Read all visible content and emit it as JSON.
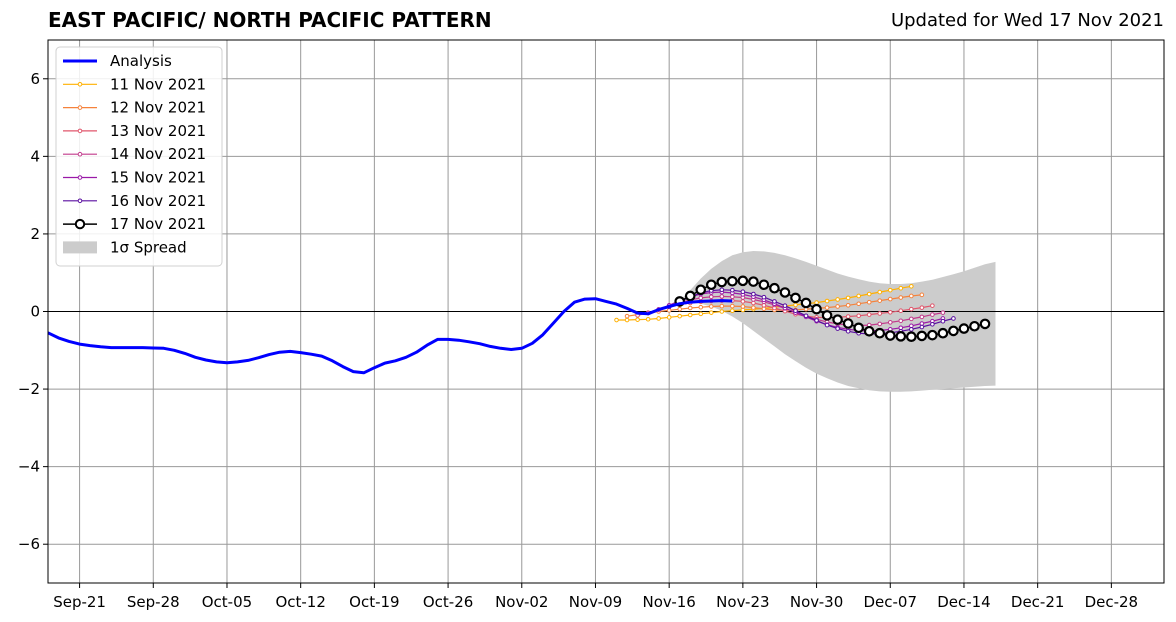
{
  "chart_data": {
    "type": "line",
    "title": "EAST PACIFIC/ NORTH PACIFIC PATTERN",
    "subtitle": "Updated for Wed 17 Nov 2021",
    "x_range": [
      "2021-09-18",
      "2022-01-02"
    ],
    "ylim": [
      -7,
      7
    ],
    "yticks": [
      -6,
      -4,
      -2,
      0,
      2,
      4,
      6
    ],
    "ytick_labels": [
      "−6",
      "−4",
      "−2",
      "0",
      "2",
      "4",
      "6"
    ],
    "xticks": [
      "2021-09-21",
      "2021-09-28",
      "2021-10-05",
      "2021-10-12",
      "2021-10-19",
      "2021-10-26",
      "2021-11-02",
      "2021-11-09",
      "2021-11-16",
      "2021-11-23",
      "2021-11-30",
      "2021-12-07",
      "2021-12-14",
      "2021-12-21",
      "2021-12-28"
    ],
    "xtick_labels": [
      "Sep-21",
      "Sep-28",
      "Oct-05",
      "Oct-12",
      "Oct-19",
      "Oct-26",
      "Nov-02",
      "Nov-09",
      "Nov-16",
      "Nov-23",
      "Nov-30",
      "Dec-07",
      "Dec-14",
      "Dec-21",
      "Dec-28"
    ],
    "grid": true,
    "legend_position": "upper-left",
    "legend": [
      {
        "label": "Analysis",
        "color": "#0000ff",
        "style": "thick-line"
      },
      {
        "label": "11 Nov 2021",
        "color": "#ffb000",
        "style": "line-dots"
      },
      {
        "label": "12 Nov 2021",
        "color": "#f5823c",
        "style": "line-dots"
      },
      {
        "label": "13 Nov 2021",
        "color": "#e0566c",
        "style": "line-dots"
      },
      {
        "label": "14 Nov 2021",
        "color": "#c23a8c",
        "style": "line-dots"
      },
      {
        "label": "15 Nov 2021",
        "color": "#9a19a8",
        "style": "line-dots"
      },
      {
        "label": "16 Nov 2021",
        "color": "#5a0fa0",
        "style": "line-dots"
      },
      {
        "label": "17 Nov 2021",
        "color": "#000000",
        "style": "line-open-circles"
      },
      {
        "label": "1σ Spread",
        "color": "#cccccc",
        "style": "patch"
      }
    ],
    "analysis": {
      "name": "Analysis",
      "color": "#0000ff",
      "start": "2021-09-18",
      "values": [
        -0.55,
        -0.68,
        -0.77,
        -0.84,
        -0.88,
        -0.91,
        -0.93,
        -0.93,
        -0.93,
        -0.93,
        -0.94,
        -0.95,
        -1.0,
        -1.08,
        -1.18,
        -1.25,
        -1.3,
        -1.32,
        -1.3,
        -1.26,
        -1.19,
        -1.11,
        -1.05,
        -1.03,
        -1.06,
        -1.1,
        -1.15,
        -1.27,
        -1.42,
        -1.55,
        -1.58,
        -1.45,
        -1.33,
        -1.27,
        -1.18,
        -1.05,
        -0.87,
        -0.72,
        -0.72,
        -0.74,
        -0.78,
        -0.83,
        -0.9,
        -0.95,
        -0.98,
        -0.95,
        -0.82,
        -0.6,
        -0.3,
        0.0,
        0.24,
        0.32,
        0.33,
        0.26,
        0.19,
        0.08,
        -0.04,
        -0.06,
        0.05,
        0.13,
        0.2,
        0.24,
        0.26,
        0.27,
        0.28,
        0.27
      ]
    },
    "forecasts": [
      {
        "name": "11 Nov 2021",
        "color": "#ffb000",
        "start": "2021-11-11",
        "values": [
          -0.22,
          -0.22,
          -0.21,
          -0.2,
          -0.18,
          -0.15,
          -0.12,
          -0.09,
          -0.06,
          -0.03,
          0.0,
          0.02,
          0.04,
          0.06,
          0.08,
          0.11,
          0.14,
          0.17,
          0.2,
          0.23,
          0.27,
          0.31,
          0.35,
          0.4,
          0.45,
          0.5,
          0.55,
          0.6,
          0.65
        ]
      },
      {
        "name": "12 Nov 2021",
        "color": "#f5823c",
        "start": "2021-11-12",
        "values": [
          -0.12,
          -0.08,
          -0.04,
          0.0,
          0.03,
          0.06,
          0.09,
          0.11,
          0.13,
          0.14,
          0.14,
          0.13,
          0.1,
          0.07,
          0.04,
          0.03,
          0.04,
          0.06,
          0.08,
          0.1,
          0.13,
          0.16,
          0.2,
          0.24,
          0.28,
          0.32,
          0.36,
          0.4,
          0.43
        ]
      },
      {
        "name": "13 Nov 2021",
        "color": "#e0566c",
        "start": "2021-11-13",
        "values": [
          -0.1,
          -0.03,
          0.05,
          0.12,
          0.18,
          0.22,
          0.25,
          0.27,
          0.28,
          0.28,
          0.26,
          0.22,
          0.16,
          0.09,
          0.01,
          -0.07,
          -0.12,
          -0.15,
          -0.16,
          -0.15,
          -0.13,
          -0.11,
          -0.08,
          -0.05,
          -0.02,
          0.02,
          0.06,
          0.1,
          0.15
        ]
      },
      {
        "name": "14 Nov 2021",
        "color": "#c23a8c",
        "start": "2021-11-14",
        "values": [
          -0.04,
          0.05,
          0.14,
          0.22,
          0.3,
          0.35,
          0.38,
          0.39,
          0.38,
          0.36,
          0.31,
          0.25,
          0.17,
          0.08,
          -0.02,
          -0.12,
          -0.2,
          -0.27,
          -0.32,
          -0.35,
          -0.36,
          -0.35,
          -0.32,
          -0.28,
          -0.24,
          -0.19,
          -0.14,
          -0.08,
          -0.03
        ]
      },
      {
        "name": "15 Nov 2021",
        "color": "#9a19a8",
        "start": "2021-11-15",
        "values": [
          0.05,
          0.16,
          0.28,
          0.38,
          0.45,
          0.49,
          0.5,
          0.48,
          0.44,
          0.38,
          0.3,
          0.2,
          0.09,
          -0.03,
          -0.14,
          -0.25,
          -0.34,
          -0.41,
          -0.46,
          -0.49,
          -0.5,
          -0.49,
          -0.46,
          -0.42,
          -0.37,
          -0.31,
          -0.25,
          -0.18
        ]
      },
      {
        "name": "16 Nov 2021",
        "color": "#5a0fa0",
        "start": "2021-11-16",
        "values": [
          0.12,
          0.25,
          0.38,
          0.48,
          0.54,
          0.56,
          0.55,
          0.51,
          0.45,
          0.37,
          0.26,
          0.15,
          0.02,
          -0.11,
          -0.23,
          -0.35,
          -0.44,
          -0.51,
          -0.56,
          -0.58,
          -0.57,
          -0.55,
          -0.51,
          -0.46,
          -0.4,
          -0.33,
          -0.25,
          -0.18
        ]
      },
      {
        "name": "17 Nov 2021",
        "color": "#000000",
        "start": "2021-11-17",
        "values": [
          0.26,
          0.4,
          0.56,
          0.69,
          0.76,
          0.78,
          0.79,
          0.77,
          0.69,
          0.6,
          0.49,
          0.35,
          0.22,
          0.06,
          -0.1,
          -0.21,
          -0.31,
          -0.42,
          -0.51,
          -0.56,
          -0.62,
          -0.64,
          -0.65,
          -0.63,
          -0.61,
          -0.56,
          -0.5,
          -0.44,
          -0.38,
          -0.32
        ]
      }
    ],
    "spread": {
      "name": "1σ Spread",
      "color": "#cccccc",
      "start": "2021-11-17",
      "upper": [
        0.28,
        0.55,
        0.85,
        1.1,
        1.3,
        1.45,
        1.53,
        1.56,
        1.55,
        1.51,
        1.45,
        1.37,
        1.28,
        1.18,
        1.08,
        0.98,
        0.9,
        0.83,
        0.77,
        0.73,
        0.71,
        0.71,
        0.73,
        0.77,
        0.82,
        0.89,
        0.96,
        1.04,
        1.13,
        1.22,
        1.28
      ],
      "lower": [
        0.24,
        0.22,
        0.2,
        0.13,
        0.02,
        -0.13,
        -0.3,
        -0.5,
        -0.7,
        -0.9,
        -1.1,
        -1.28,
        -1.45,
        -1.6,
        -1.72,
        -1.83,
        -1.92,
        -1.98,
        -2.03,
        -2.06,
        -2.07,
        -2.07,
        -2.06,
        -2.04,
        -2.02,
        -2.0,
        -1.98,
        -1.96,
        -1.94,
        -1.92,
        -1.91
      ]
    }
  }
}
